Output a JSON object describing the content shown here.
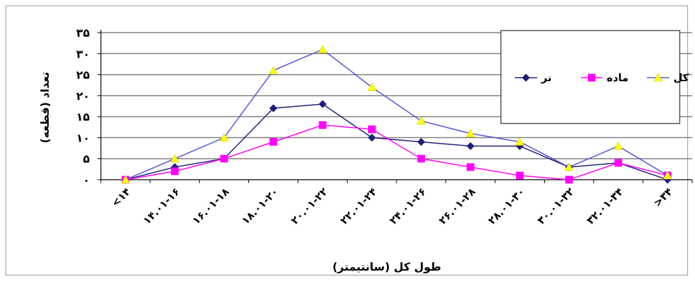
{
  "chart_data": {
    "type": "line",
    "ylabel": "تعداد (قطعه)",
    "xlabel": "طول کل (سانتیمتر)",
    "ylim": [
      0,
      35
    ],
    "y_ticks": [
      "۰",
      "۵",
      "۱۰",
      "۱۵",
      "۲۰",
      "۲۵",
      "۳۰",
      "۳۵"
    ],
    "grid": true,
    "legend_position": "top-right",
    "categories": [
      "<۱۴",
      "۱۴.۰۱-۱۶",
      "۱۶.۰۱-۱۸",
      "۱۸.۰۱-۲۰",
      "۲۰.۰۱-۲۲",
      "۲۲.۰۱-۲۴",
      "۲۴.۰۱-۲۶",
      "۲۶.۰۱-۲۸",
      "۲۸.۰۱-۳۰",
      "۳۰.۰۱-۳۲",
      "۳۲.۰۱-۳۴",
      ">۳۴"
    ],
    "series": [
      {
        "name": "نر",
        "color": "#1f1f7a",
        "marker": "diamond",
        "values": [
          0,
          3,
          5,
          17,
          18,
          10,
          9,
          8,
          8,
          3,
          4,
          0
        ]
      },
      {
        "name": "ماده",
        "color": "#ff00ff",
        "marker": "square",
        "values": [
          0,
          2,
          5,
          9,
          13,
          12,
          5,
          3,
          1,
          0,
          4,
          1
        ]
      },
      {
        "name": "کل",
        "color": "#ffff00",
        "line_color": "#5555dd",
        "marker": "triangle",
        "values": [
          0,
          5,
          10,
          26,
          31,
          22,
          14,
          11,
          9,
          3,
          8,
          1
        ]
      }
    ]
  }
}
